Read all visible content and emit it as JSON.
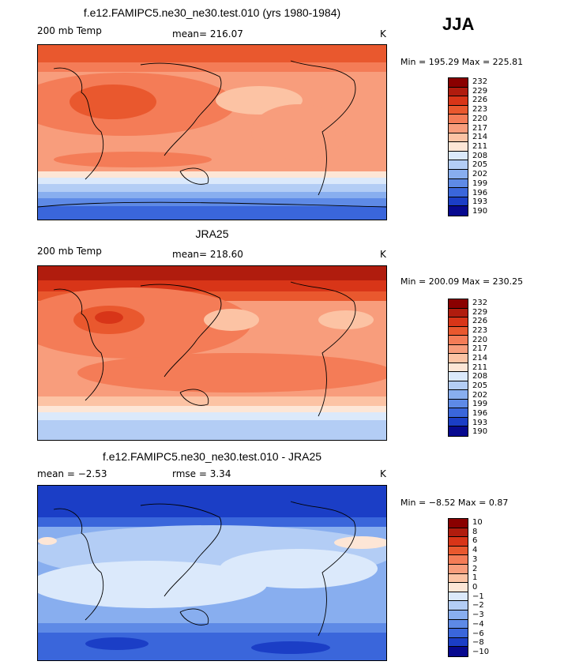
{
  "season": "JJA",
  "chart_data": [
    {
      "type": "heatmap",
      "title": "f.e12.FAMIPC5.ne30_ne30.test.010 (yrs 1980-1984)",
      "left_label": "200 mb Temp",
      "center_label": "mean= 216.07",
      "right_label": "K",
      "stats": "Min = 195.29 Max = 225.81",
      "mean": 216.07,
      "min": 195.29,
      "max": 225.81,
      "colorbar_levels": [
        "232",
        "229",
        "226",
        "223",
        "220",
        "217",
        "214",
        "211",
        "208",
        "205",
        "202",
        "199",
        "196",
        "193",
        "190"
      ]
    },
    {
      "type": "heatmap",
      "title": "JRA25",
      "left_label": "200 mb Temp",
      "center_label": "mean= 218.60",
      "right_label": "K",
      "stats": "Min = 200.09 Max = 230.25",
      "mean": 218.6,
      "min": 200.09,
      "max": 230.25,
      "colorbar_levels": [
        "232",
        "229",
        "226",
        "223",
        "220",
        "217",
        "214",
        "211",
        "208",
        "205",
        "202",
        "199",
        "196",
        "193",
        "190"
      ]
    },
    {
      "type": "heatmap",
      "title": "f.e12.FAMIPC5.ne30_ne30.test.010 - JRA25",
      "left_label": "mean =   −2.53",
      "center_label": "rmse =    3.34",
      "right_label": "K",
      "stats": "Min =  −8.52 Max =    0.87",
      "mean": -2.53,
      "rmse": 3.34,
      "min": -8.52,
      "max": 0.87,
      "colorbar_levels": [
        "10",
        "8",
        "6",
        "4",
        "3",
        "2",
        "1",
        "0",
        "−1",
        "−2",
        "−3",
        "−4",
        "−6",
        "−8",
        "−10"
      ]
    }
  ],
  "palette": [
    "#8a0000",
    "#b01c0e",
    "#d83518",
    "#e9582e",
    "#f47c57",
    "#f89d7c",
    "#fcc3a4",
    "#fde6d6",
    "#dbe9fb",
    "#b3cdf5",
    "#88aeef",
    "#5e8ae6",
    "#3a66db",
    "#1b3ec6",
    "#07098f"
  ]
}
